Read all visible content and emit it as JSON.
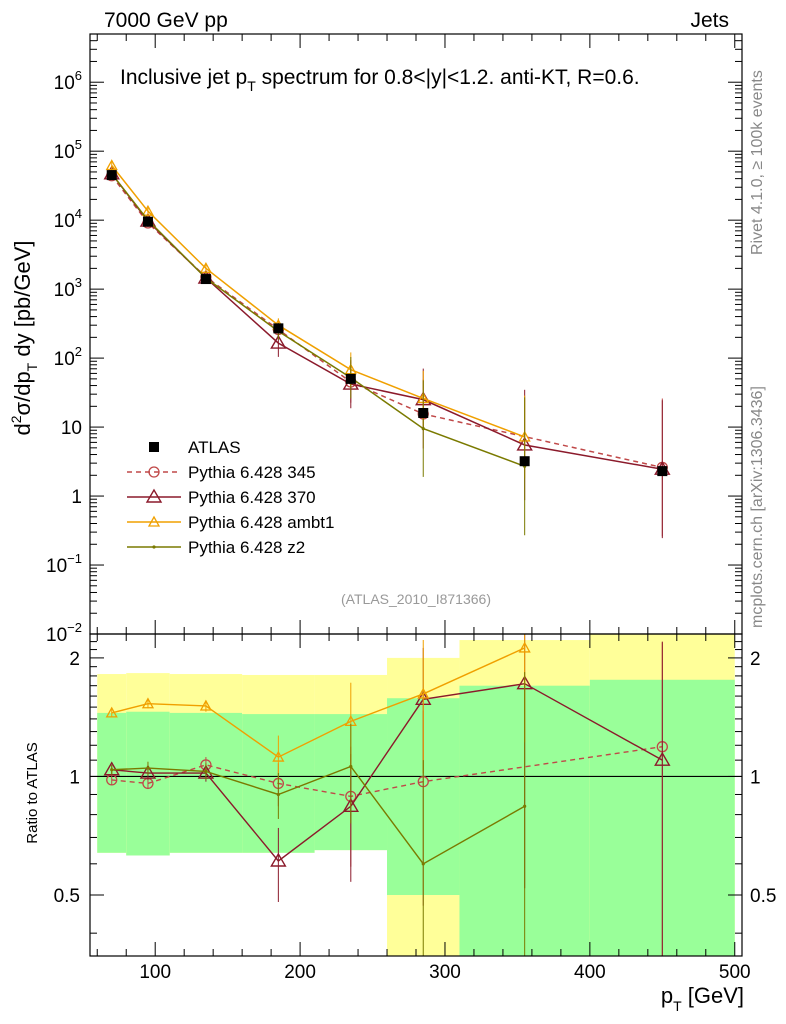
{
  "header": {
    "left": "7000 GeV pp",
    "right": "Jets"
  },
  "side_labels": {
    "top": "Rivet 4.1.0, ≥ 100k events",
    "bottom": "mcplots.cern.ch [arXiv:1306.3436]"
  },
  "chart_data": {
    "type": "line",
    "title": "Inclusive jet p_T spectrum for 0.8<|y|<1.2.  anti-KT, R=0.6.",
    "title_parts": {
      "main": "Inclusive jet p",
      "sub": "T",
      "rest": " spectrum for 0.8<|y|<1.2.  anti-KT, R=0.6."
    },
    "analysis_label": "(ATLAS_2010_I871366)",
    "xlabel": "p_T [GeV]",
    "xlabel_parts": {
      "main": "p",
      "sub": "T",
      "rest": " [GeV]"
    },
    "ylabel": "d²σ/dp_T dy [pb/GeV]",
    "ylabel_parts": {
      "a": "d",
      "sup": "2",
      "b": "σ/dp",
      "sub": "T",
      "c": " dy [pb/GeV]"
    },
    "ratio_ylabel": "Ratio to ATLAS",
    "xlim": [
      55,
      505
    ],
    "ylim_log": [
      0.01,
      5000000
    ],
    "ratio_ylim": [
      0.35,
      2.3
    ],
    "x_ticks": [
      {
        "v": 100,
        "label": "100"
      },
      {
        "v": 200,
        "label": "200"
      },
      {
        "v": 300,
        "label": "300"
      },
      {
        "v": 400,
        "label": "400"
      },
      {
        "v": 500,
        "label": "500"
      }
    ],
    "y_ticks": [
      {
        "v": 0.01,
        "base": "10",
        "exp": "−2"
      },
      {
        "v": 0.1,
        "base": "10",
        "exp": "−1"
      },
      {
        "v": 1,
        "base": "1",
        "exp": ""
      },
      {
        "v": 10,
        "base": "10",
        "exp": ""
      },
      {
        "v": 100,
        "base": "10",
        "exp": "2"
      },
      {
        "v": 1000,
        "base": "10",
        "exp": "3"
      },
      {
        "v": 10000,
        "base": "10",
        "exp": "4"
      },
      {
        "v": 100000,
        "base": "10",
        "exp": "5"
      },
      {
        "v": 1000000,
        "base": "10",
        "exp": "6"
      }
    ],
    "ratio_ticks": [
      {
        "v": 0.5,
        "label": "0.5"
      },
      {
        "v": 1,
        "label": "1"
      },
      {
        "v": 2,
        "label": "2"
      }
    ],
    "bins": [
      {
        "lo": 60,
        "hi": 80,
        "x": 70
      },
      {
        "lo": 80,
        "hi": 110,
        "x": 95
      },
      {
        "lo": 110,
        "hi": 160,
        "x": 135
      },
      {
        "lo": 160,
        "hi": 210,
        "x": 185
      },
      {
        "lo": 210,
        "hi": 260,
        "x": 235
      },
      {
        "lo": 260,
        "hi": 310,
        "x": 285
      },
      {
        "lo": 310,
        "hi": 400,
        "x": 355
      },
      {
        "lo": 400,
        "hi": 500,
        "x": 450
      }
    ],
    "ratio_bands": {
      "yellow": [
        [
          0.64,
          1.82
        ],
        [
          0.63,
          1.83
        ],
        [
          0.64,
          1.82
        ],
        [
          0.64,
          1.81
        ],
        [
          0.65,
          1.81
        ],
        [
          0.28,
          2.0
        ],
        [
          0.28,
          2.22
        ],
        [
          0.28,
          2.3
        ]
      ],
      "green": [
        [
          0.64,
          1.45
        ],
        [
          0.63,
          1.46
        ],
        [
          0.64,
          1.45
        ],
        [
          0.64,
          1.44
        ],
        [
          0.65,
          1.44
        ],
        [
          0.5,
          1.58
        ],
        [
          0.28,
          1.7
        ],
        [
          0.28,
          1.76
        ]
      ]
    },
    "data": {
      "name": "ATLAS",
      "x": [
        70,
        95,
        135,
        185,
        235,
        285,
        355,
        450
      ],
      "y": [
        45000,
        9500,
        1400,
        270,
        50,
        16,
        3.2,
        2.3
      ]
    },
    "series": [
      {
        "name": "Pythia 6.428 345",
        "color": "#c04848",
        "dash": "5,4",
        "marker": "circle",
        "x": [
          70,
          95,
          135,
          185,
          235,
          285,
          450
        ],
        "y": [
          44000,
          9100,
          1500,
          260,
          45,
          15.5,
          2.6
        ],
        "yerr": [
          0.06,
          0.06,
          0.08,
          0.1,
          0.3,
          0.5,
          1.0
        ],
        "ratio": [
          0.98,
          0.96,
          1.07,
          0.96,
          0.89,
          0.97,
          1.19
        ],
        "ratio_err": [
          0.03,
          0.03,
          0.05,
          0.12,
          0.3,
          0.5,
          1.0
        ]
      },
      {
        "name": "Pythia 6.428 370",
        "color": "#8b1a2b",
        "dash": "",
        "marker": "triangle",
        "x": [
          70,
          95,
          135,
          185,
          235,
          285,
          355,
          450
        ],
        "y": [
          47000,
          9700,
          1450,
          165,
          42,
          25,
          5.5,
          2.45
        ],
        "yerr": [
          0.06,
          0.06,
          0.08,
          0.2,
          0.35,
          0.45,
          0.8,
          1.0
        ],
        "ratio": [
          1.04,
          1.02,
          1.02,
          0.61,
          0.84,
          1.57,
          1.72,
          1.1
        ],
        "ratio_err": [
          0.03,
          0.04,
          0.05,
          0.13,
          0.3,
          0.55,
          1.2,
          1.1
        ]
      },
      {
        "name": "Pythia 6.428 ambt1",
        "color": "#f0a000",
        "dash": "",
        "marker": "triangle-small",
        "x": [
          70,
          95,
          135,
          185,
          235,
          285,
          355
        ],
        "y": [
          62000,
          13500,
          2000,
          300,
          68,
          26,
          7.2
        ],
        "yerr": [
          0.05,
          0.05,
          0.07,
          0.1,
          0.25,
          0.4,
          0.6
        ],
        "ratio": [
          1.45,
          1.53,
          1.51,
          1.12,
          1.38,
          1.62,
          2.12
        ],
        "ratio_err": [
          0.03,
          0.04,
          0.05,
          0.15,
          0.35,
          0.6,
          0.9
        ]
      },
      {
        "name": "Pythia 6.428 z2",
        "color": "#7a7a00",
        "dash": "",
        "marker": "dot",
        "x": [
          70,
          95,
          135,
          185,
          235,
          285,
          355
        ],
        "y": [
          47000,
          10000,
          1450,
          245,
          52,
          9.5,
          2.7
        ],
        "yerr": [
          0.06,
          0.06,
          0.08,
          0.12,
          0.3,
          0.7,
          1.0
        ],
        "ratio": [
          1.04,
          1.05,
          1.03,
          0.9,
          1.06,
          0.6,
          0.84
        ],
        "ratio_err": [
          0.03,
          0.04,
          0.05,
          0.12,
          0.3,
          0.5,
          1.0
        ]
      }
    ],
    "legend_position": "lower-left",
    "grid": false
  }
}
